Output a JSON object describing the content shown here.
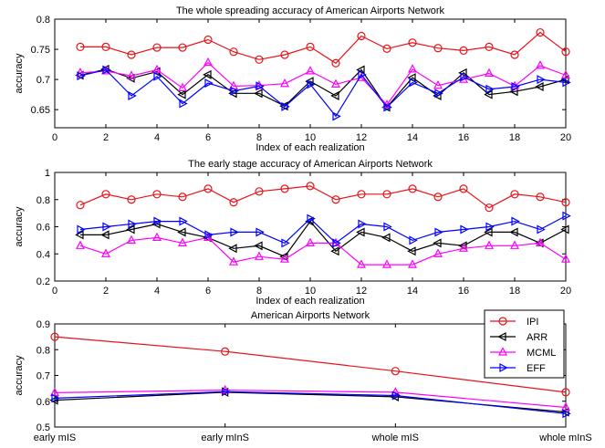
{
  "chart_data": [
    {
      "type": "line",
      "title": "The whole spreading accuracy of American Airports Network",
      "xlabel": "Index of each realization",
      "ylabel": "accuracy",
      "xlim": [
        0,
        20
      ],
      "ylim": [
        0.62,
        0.8
      ],
      "xticks": [
        0,
        2,
        4,
        6,
        8,
        10,
        12,
        14,
        16,
        18,
        20
      ],
      "yticks": [
        0.65,
        0.7,
        0.75,
        0.8
      ],
      "x": [
        1,
        2,
        3,
        4,
        5,
        6,
        7,
        8,
        9,
        10,
        11,
        12,
        13,
        14,
        15,
        16,
        17,
        18,
        19,
        20
      ],
      "series": [
        {
          "name": "IPI",
          "color": "#e8131a",
          "marker": "circle",
          "values": [
            0.754,
            0.754,
            0.741,
            0.753,
            0.753,
            0.766,
            0.746,
            0.733,
            0.741,
            0.754,
            0.727,
            0.772,
            0.751,
            0.761,
            0.752,
            0.748,
            0.754,
            0.741,
            0.778,
            0.746
          ]
        },
        {
          "name": "ARR",
          "color": "#000000",
          "marker": "triangle-left",
          "values": [
            0.707,
            0.717,
            0.702,
            0.713,
            0.675,
            0.708,
            0.677,
            0.677,
            0.656,
            0.697,
            0.673,
            0.716,
            0.654,
            0.703,
            0.673,
            0.711,
            0.675,
            0.68,
            0.688,
            0.7
          ]
        },
        {
          "name": "MCML",
          "color": "#ff00ff",
          "marker": "triangle-up",
          "values": [
            0.711,
            0.714,
            0.706,
            0.716,
            0.686,
            0.728,
            0.689,
            0.69,
            0.693,
            0.714,
            0.692,
            0.703,
            0.658,
            0.717,
            0.69,
            0.7,
            0.71,
            0.689,
            0.723,
            0.707
          ]
        },
        {
          "name": "EFF",
          "color": "#0000ff",
          "marker": "triangle-right",
          "values": [
            0.706,
            0.716,
            0.673,
            0.705,
            0.66,
            0.694,
            0.681,
            0.689,
            0.655,
            0.692,
            0.639,
            0.708,
            0.654,
            0.695,
            0.677,
            0.704,
            0.684,
            0.688,
            0.7,
            0.695
          ]
        }
      ]
    },
    {
      "type": "line",
      "title": "The early stage accuracy of American Airports Network",
      "xlabel": "Index of each realization",
      "ylabel": "accuracy",
      "xlim": [
        0,
        20
      ],
      "ylim": [
        0.2,
        1.0
      ],
      "xticks": [
        0,
        2,
        4,
        6,
        8,
        10,
        12,
        14,
        16,
        18,
        20
      ],
      "yticks": [
        0.2,
        0.4,
        0.6,
        0.8,
        1
      ],
      "x": [
        1,
        2,
        3,
        4,
        5,
        6,
        7,
        8,
        9,
        10,
        11,
        12,
        13,
        14,
        15,
        16,
        17,
        18,
        19,
        20
      ],
      "series": [
        {
          "name": "IPI",
          "color": "#e8131a",
          "marker": "circle",
          "values": [
            0.76,
            0.84,
            0.8,
            0.84,
            0.82,
            0.88,
            0.78,
            0.86,
            0.88,
            0.9,
            0.8,
            0.84,
            0.84,
            0.88,
            0.82,
            0.88,
            0.74,
            0.84,
            0.82,
            0.78
          ]
        },
        {
          "name": "ARR",
          "color": "#000000",
          "marker": "triangle-left",
          "values": [
            0.54,
            0.54,
            0.58,
            0.62,
            0.56,
            0.52,
            0.44,
            0.46,
            0.38,
            0.64,
            0.42,
            0.56,
            0.52,
            0.42,
            0.48,
            0.46,
            0.56,
            0.56,
            0.48,
            0.58
          ]
        },
        {
          "name": "MCML",
          "color": "#ff00ff",
          "marker": "triangle-up",
          "values": [
            0.46,
            0.4,
            0.5,
            0.52,
            0.48,
            0.52,
            0.34,
            0.38,
            0.36,
            0.48,
            0.48,
            0.32,
            0.32,
            0.32,
            0.4,
            0.44,
            0.46,
            0.46,
            0.48,
            0.36
          ]
        },
        {
          "name": "EFF",
          "color": "#0000ff",
          "marker": "triangle-right",
          "values": [
            0.58,
            0.6,
            0.62,
            0.64,
            0.64,
            0.54,
            0.56,
            0.56,
            0.48,
            0.66,
            0.48,
            0.62,
            0.6,
            0.5,
            0.56,
            0.58,
            0.6,
            0.64,
            0.58,
            0.68
          ]
        }
      ]
    },
    {
      "type": "line",
      "title": "American Airports Network",
      "xlabel": "",
      "ylabel": "accuracy",
      "xlim": [
        1,
        4
      ],
      "ylim": [
        0.5,
        0.9
      ],
      "categories": [
        "early mIS",
        "early mInS",
        "whole mIS",
        "whole mInS"
      ],
      "yticks": [
        0.5,
        0.6,
        0.7,
        0.8,
        0.9
      ],
      "legend_position": "top-right",
      "series": [
        {
          "name": "IPI",
          "color": "#e8131a",
          "marker": "circle",
          "values": [
            0.85,
            0.793,
            0.717,
            0.635
          ]
        },
        {
          "name": "ARR",
          "color": "#000000",
          "marker": "triangle-left",
          "values": [
            0.604,
            0.635,
            0.617,
            0.558
          ]
        },
        {
          "name": "MCML",
          "color": "#ff00ff",
          "marker": "triangle-up",
          "values": [
            0.633,
            0.643,
            0.635,
            0.576
          ]
        },
        {
          "name": "EFF",
          "color": "#0000ff",
          "marker": "triangle-right",
          "values": [
            0.612,
            0.637,
            0.622,
            0.552
          ]
        }
      ]
    }
  ]
}
